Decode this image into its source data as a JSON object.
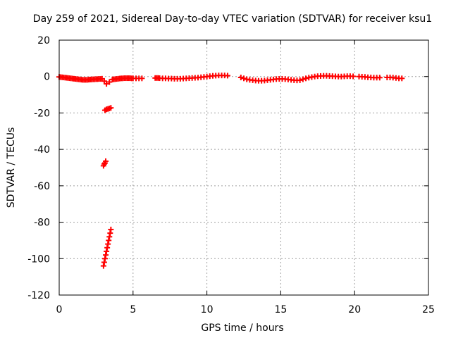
{
  "chart_data": {
    "type": "scatter",
    "title": "Day 259 of 2021, Sidereal Day-to-day VTEC variation (SDTVAR) for receiver ksu1",
    "xlabel": "GPS time / hours",
    "ylabel": "SDTVAR / TECUs",
    "xlim": [
      0,
      25
    ],
    "ylim": [
      -120,
      20
    ],
    "xticks": [
      0,
      5,
      10,
      15,
      20,
      25
    ],
    "yticks": [
      20,
      0,
      -20,
      -40,
      -60,
      -80,
      -100,
      -120
    ],
    "grid": true,
    "marker": "plus",
    "color": "#ff0000",
    "series": [
      {
        "name": "SDTVAR",
        "points": [
          [
            0.0,
            -0.2
          ],
          [
            0.1,
            -0.3
          ],
          [
            0.2,
            -0.4
          ],
          [
            0.3,
            -0.5
          ],
          [
            0.4,
            -0.6
          ],
          [
            0.5,
            -0.7
          ],
          [
            0.6,
            -0.8
          ],
          [
            0.7,
            -0.9
          ],
          [
            0.8,
            -1.0
          ],
          [
            0.9,
            -1.1
          ],
          [
            1.0,
            -1.2
          ],
          [
            1.1,
            -1.3
          ],
          [
            1.2,
            -1.4
          ],
          [
            1.3,
            -1.5
          ],
          [
            1.4,
            -1.6
          ],
          [
            1.5,
            -1.7
          ],
          [
            1.6,
            -1.8
          ],
          [
            1.7,
            -1.8
          ],
          [
            1.8,
            -1.8
          ],
          [
            1.9,
            -1.8
          ],
          [
            2.0,
            -1.7
          ],
          [
            2.1,
            -1.6
          ],
          [
            2.2,
            -1.6
          ],
          [
            2.3,
            -1.5
          ],
          [
            2.4,
            -1.5
          ],
          [
            2.5,
            -1.4
          ],
          [
            2.6,
            -1.4
          ],
          [
            2.7,
            -1.3
          ],
          [
            2.8,
            -1.3
          ],
          [
            2.9,
            -1.2
          ],
          [
            3.05,
            -2.5
          ],
          [
            3.2,
            -4.0
          ],
          [
            3.4,
            -3.0
          ],
          [
            3.1,
            -18.5
          ],
          [
            3.2,
            -18.0
          ],
          [
            3.3,
            -17.8
          ],
          [
            3.4,
            -17.5
          ],
          [
            3.5,
            -17.2
          ],
          [
            3.0,
            -49.0
          ],
          [
            3.05,
            -48.0
          ],
          [
            3.1,
            -47.5
          ],
          [
            3.15,
            -46.5
          ],
          [
            3.0,
            -104.0
          ],
          [
            3.05,
            -102.0
          ],
          [
            3.1,
            -100.0
          ],
          [
            3.15,
            -98.0
          ],
          [
            3.2,
            -96.0
          ],
          [
            3.25,
            -94.0
          ],
          [
            3.3,
            -92.0
          ],
          [
            3.35,
            -90.0
          ],
          [
            3.4,
            -88.0
          ],
          [
            3.45,
            -86.0
          ],
          [
            3.5,
            -84.0
          ],
          [
            3.6,
            -1.6
          ],
          [
            3.7,
            -1.5
          ],
          [
            3.8,
            -1.4
          ],
          [
            3.9,
            -1.3
          ],
          [
            4.0,
            -1.2
          ],
          [
            4.1,
            -1.1
          ],
          [
            4.2,
            -1.0
          ],
          [
            4.3,
            -1.0
          ],
          [
            4.4,
            -0.9
          ],
          [
            4.5,
            -0.9
          ],
          [
            4.6,
            -0.9
          ],
          [
            4.7,
            -0.9
          ],
          [
            4.8,
            -0.9
          ],
          [
            4.9,
            -1.0
          ],
          [
            5.0,
            -1.0
          ],
          [
            5.2,
            -1.0
          ],
          [
            5.4,
            -1.0
          ],
          [
            5.6,
            -1.0
          ],
          [
            6.5,
            -0.8
          ],
          [
            6.6,
            -0.8
          ],
          [
            6.7,
            -0.8
          ],
          [
            6.8,
            -0.9
          ],
          [
            7.0,
            -1.0
          ],
          [
            7.2,
            -1.0
          ],
          [
            7.4,
            -1.1
          ],
          [
            7.6,
            -1.1
          ],
          [
            7.8,
            -1.2
          ],
          [
            8.0,
            -1.2
          ],
          [
            8.2,
            -1.2
          ],
          [
            8.4,
            -1.1
          ],
          [
            8.6,
            -1.0
          ],
          [
            8.8,
            -0.9
          ],
          [
            9.0,
            -0.8
          ],
          [
            9.2,
            -0.7
          ],
          [
            9.4,
            -0.6
          ],
          [
            9.6,
            -0.4
          ],
          [
            9.8,
            -0.2
          ],
          [
            10.0,
            0.0
          ],
          [
            10.2,
            0.2
          ],
          [
            10.4,
            0.4
          ],
          [
            10.6,
            0.5
          ],
          [
            10.8,
            0.6
          ],
          [
            11.0,
            0.6
          ],
          [
            11.2,
            0.6
          ],
          [
            11.4,
            0.5
          ],
          [
            12.3,
            -0.5
          ],
          [
            12.5,
            -1.0
          ],
          [
            12.7,
            -1.5
          ],
          [
            12.9,
            -1.8
          ],
          [
            13.1,
            -2.0
          ],
          [
            13.3,
            -2.2
          ],
          [
            13.5,
            -2.3
          ],
          [
            13.7,
            -2.3
          ],
          [
            13.9,
            -2.2
          ],
          [
            14.1,
            -2.0
          ],
          [
            14.3,
            -1.8
          ],
          [
            14.5,
            -1.6
          ],
          [
            14.7,
            -1.4
          ],
          [
            14.9,
            -1.3
          ],
          [
            15.1,
            -1.3
          ],
          [
            15.3,
            -1.4
          ],
          [
            15.5,
            -1.6
          ],
          [
            15.7,
            -1.8
          ],
          [
            15.9,
            -2.0
          ],
          [
            16.1,
            -2.1
          ],
          [
            16.3,
            -2.0
          ],
          [
            16.5,
            -1.5
          ],
          [
            16.7,
            -1.0
          ],
          [
            16.9,
            -0.6
          ],
          [
            17.1,
            -0.3
          ],
          [
            17.3,
            0.0
          ],
          [
            17.5,
            0.2
          ],
          [
            17.7,
            0.3
          ],
          [
            17.9,
            0.4
          ],
          [
            18.1,
            0.4
          ],
          [
            18.3,
            0.3
          ],
          [
            18.5,
            0.2
          ],
          [
            18.7,
            0.1
          ],
          [
            18.9,
            0.0
          ],
          [
            19.1,
            0.0
          ],
          [
            19.3,
            0.1
          ],
          [
            19.5,
            0.2
          ],
          [
            19.7,
            0.2
          ],
          [
            19.9,
            0.1
          ],
          [
            20.3,
            0.0
          ],
          [
            20.5,
            -0.1
          ],
          [
            20.7,
            -0.2
          ],
          [
            20.9,
            -0.4
          ],
          [
            21.1,
            -0.5
          ],
          [
            21.3,
            -0.6
          ],
          [
            21.5,
            -0.6
          ],
          [
            21.7,
            -0.6
          ],
          [
            22.2,
            -0.5
          ],
          [
            22.4,
            -0.5
          ],
          [
            22.6,
            -0.6
          ],
          [
            22.8,
            -0.8
          ],
          [
            23.0,
            -1.0
          ],
          [
            23.2,
            -1.0
          ]
        ]
      }
    ]
  }
}
